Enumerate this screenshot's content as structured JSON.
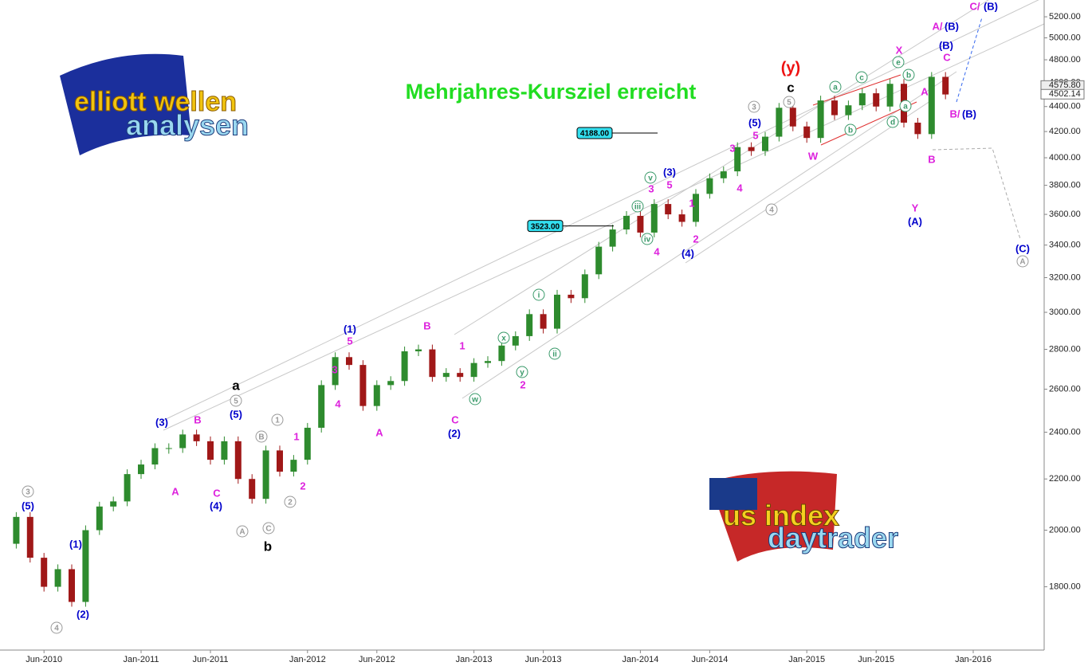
{
  "chart_data": {
    "type": "candlestick",
    "title": "Mehrjahres-Kursziel erreicht",
    "x": [
      "Mar-2010",
      "Apr-2010",
      "May-2010",
      "Jun-2010",
      "Jul-2010",
      "Aug-2010",
      "Sep-2010",
      "Oct-2010",
      "Nov-2010",
      "Dec-2010",
      "Jan-2011",
      "Feb-2011",
      "Mar-2011",
      "Apr-2011",
      "May-2011",
      "Jun-2011",
      "Jul-2011",
      "Aug-2011",
      "Sep-2011",
      "Oct-2011",
      "Nov-2011",
      "Dec-2011",
      "Jan-2012",
      "Feb-2012",
      "Mar-2012",
      "Apr-2012",
      "May-2012",
      "Jun-2012",
      "Jul-2012",
      "Aug-2012",
      "Sep-2012",
      "Oct-2012",
      "Nov-2012",
      "Dec-2012",
      "Jan-2013",
      "Feb-2013",
      "Mar-2013",
      "Apr-2013",
      "May-2013",
      "Jun-2013",
      "Jul-2013",
      "Aug-2013",
      "Sep-2013",
      "Oct-2013",
      "Nov-2013",
      "Dec-2013",
      "Jan-2014",
      "Feb-2014",
      "Mar-2014",
      "Apr-2014",
      "May-2014",
      "Jun-2014",
      "Jul-2014",
      "Aug-2014",
      "Sep-2014",
      "Oct-2014",
      "Nov-2014",
      "Dec-2014",
      "Jan-2015",
      "Feb-2015",
      "Mar-2015",
      "Apr-2015",
      "May-2015",
      "Jun-2015",
      "Jul-2015",
      "Aug-2015",
      "Sep-2015",
      "Oct-2015",
      "Nov-2015",
      "Dec-2015",
      "Jan-2016",
      "Feb-2016",
      "Mar-2016",
      "Apr-2016"
    ],
    "values": [
      1950,
      2050,
      1900,
      1800,
      1860,
      1750,
      2000,
      2090,
      2110,
      2220,
      2260,
      2330,
      2330,
      2390,
      2360,
      2280,
      2360,
      2200,
      2120,
      2320,
      2230,
      2280,
      2420,
      2620,
      2760,
      2720,
      2520,
      2620,
      2640,
      2790,
      2800,
      2660,
      2680,
      2660,
      2730,
      2740,
      2820,
      2870,
      2990,
      2910,
      3100,
      3080,
      3220,
      3390,
      3500,
      3590,
      3480,
      3670,
      3600,
      3550,
      3740,
      3850,
      3900,
      4080,
      4050,
      4160,
      4390,
      4240,
      4150,
      4450,
      4330,
      4410,
      4510,
      4400,
      4590,
      4270,
      4180,
      4650,
      4500,
      null,
      null,
      null,
      null,
      null
    ],
    "up_color": "#2e8b2e",
    "down_color": "#a01818",
    "log_scale": true,
    "ylim": [
      1600,
      5365
    ],
    "yticks": [
      {
        "value": 1800,
        "label": "1800.00"
      },
      {
        "value": 2000,
        "label": "2000.00"
      },
      {
        "value": 2200,
        "label": "2200.00"
      },
      {
        "value": 2400,
        "label": "2400.00"
      },
      {
        "value": 2600,
        "label": "2600.00"
      },
      {
        "value": 2800,
        "label": "2800.00"
      },
      {
        "value": 3000,
        "label": "3000.00"
      },
      {
        "value": 3200,
        "label": "3200.00"
      },
      {
        "value": 3400,
        "label": "3400.00"
      },
      {
        "value": 3600,
        "label": "3600.00"
      },
      {
        "value": 3800,
        "label": "3800.00"
      },
      {
        "value": 4000,
        "label": "4000.00"
      },
      {
        "value": 4200,
        "label": "4200.00"
      },
      {
        "value": 4400,
        "label": "4400.00"
      },
      {
        "value": 4600,
        "label": "4600.00"
      },
      {
        "value": 4800,
        "label": "4800.00"
      },
      {
        "value": 5000,
        "label": "5000.00"
      },
      {
        "value": 5200,
        "label": "5200.00"
      }
    ],
    "xticks": [
      "Jun-2010",
      "Jan-2011",
      "Jun-2011",
      "Jan-2012",
      "Jun-2012",
      "Jan-2013",
      "Jun-2013",
      "Jan-2014",
      "Jun-2014",
      "Jan-2015",
      "Jun-2015",
      "Jan-2016"
    ],
    "price_levels": [
      {
        "value": 4188,
        "label": "4188.00"
      },
      {
        "value": 3523,
        "label": "3523.00"
      }
    ],
    "last_prices": [
      {
        "value": 4575.8,
        "label": "4575.80"
      },
      {
        "value": 4502.14,
        "label": "4502.14"
      }
    ],
    "annotations": [
      {
        "text": "a",
        "color": "#000000"
      },
      {
        "text": "b",
        "color": "#000000"
      },
      {
        "text": "c",
        "color": "#000000"
      },
      {
        "text": "(y)",
        "color": "#ee1111"
      },
      {
        "text": "(5)",
        "color": "#0000cc"
      },
      {
        "text": "(1)",
        "color": "#0000cc"
      },
      {
        "text": "(2)",
        "color": "#0000cc"
      },
      {
        "text": "(3)",
        "color": "#0000cc"
      },
      {
        "text": "(4)",
        "color": "#0000cc"
      },
      {
        "text": "(5)",
        "color": "#0000cc"
      },
      {
        "text": "(1)",
        "color": "#0000cc"
      },
      {
        "text": "(2)",
        "color": "#0000cc"
      },
      {
        "text": "(3)",
        "color": "#0000cc"
      },
      {
        "text": "(4)",
        "color": "#0000cc"
      },
      {
        "text": "(5)",
        "color": "#0000cc"
      },
      {
        "text": "(A)",
        "color": "#0000cc"
      },
      {
        "text": "(B)",
        "color": "#0000cc"
      },
      {
        "text": "(C)",
        "color": "#0000cc"
      },
      {
        "text": "A/",
        "color": "#dd22dd"
      },
      {
        "text": "(B)",
        "color": "#0000cc"
      },
      {
        "text": "C/",
        "color": "#dd22dd"
      },
      {
        "text": "(B)",
        "color": "#0000cc"
      },
      {
        "text": "B/",
        "color": "#dd22dd"
      },
      {
        "text": "(B)",
        "color": "#0000cc"
      },
      {
        "text": "A",
        "color": "#dd22dd"
      },
      {
        "text": "B",
        "color": "#dd22dd"
      },
      {
        "text": "C",
        "color": "#dd22dd"
      },
      {
        "text": "1",
        "color": "#dd22dd"
      },
      {
        "text": "2",
        "color": "#dd22dd"
      },
      {
        "text": "3",
        "color": "#dd22dd"
      },
      {
        "text": "4",
        "color": "#dd22dd"
      },
      {
        "text": "5",
        "color": "#dd22dd"
      },
      {
        "text": "A",
        "color": "#dd22dd"
      },
      {
        "text": "B",
        "color": "#dd22dd"
      },
      {
        "text": "1",
        "color": "#dd22dd"
      },
      {
        "text": "C",
        "color": "#dd22dd"
      },
      {
        "text": "2",
        "color": "#dd22dd"
      },
      {
        "text": "1",
        "color": "#dd22dd"
      },
      {
        "text": "2",
        "color": "#dd22dd"
      },
      {
        "text": "3",
        "color": "#dd22dd"
      },
      {
        "text": "4",
        "color": "#dd22dd"
      },
      {
        "text": "5",
        "color": "#dd22dd"
      },
      {
        "text": "3",
        "color": "#dd22dd"
      },
      {
        "text": "4",
        "color": "#dd22dd"
      },
      {
        "text": "5",
        "color": "#dd22dd"
      },
      {
        "text": "W",
        "color": "#dd22dd"
      },
      {
        "text": "X",
        "color": "#dd22dd"
      },
      {
        "text": "A",
        "color": "#dd22dd"
      },
      {
        "text": "Y",
        "color": "#dd22dd"
      },
      {
        "text": "B",
        "color": "#dd22dd"
      },
      {
        "text": "C",
        "color": "#dd22dd"
      },
      {
        "text": "3",
        "color": "#999999",
        "circled": true
      },
      {
        "text": "4",
        "color": "#999999",
        "circled": true
      },
      {
        "text": "5",
        "color": "#999999",
        "circled": true
      },
      {
        "text": "1",
        "color": "#999999",
        "circled": true
      },
      {
        "text": "B",
        "color": "#999999",
        "circled": true
      },
      {
        "text": "A",
        "color": "#999999",
        "circled": true
      },
      {
        "text": "C",
        "color": "#999999",
        "circled": true
      },
      {
        "text": "2",
        "color": "#999999",
        "circled": true
      },
      {
        "text": "3",
        "color": "#999999",
        "circled": true
      },
      {
        "text": "5",
        "color": "#999999",
        "circled": true
      },
      {
        "text": "4",
        "color": "#999999",
        "circled": true
      },
      {
        "text": "A",
        "color": "#999999",
        "circled": true
      },
      {
        "text": "i",
        "color": "#3a9a6a",
        "circled": true
      },
      {
        "text": "ii",
        "color": "#3a9a6a",
        "circled": true
      },
      {
        "text": "iii",
        "color": "#3a9a6a",
        "circled": true
      },
      {
        "text": "iv",
        "color": "#3a9a6a",
        "circled": true
      },
      {
        "text": "v",
        "color": "#3a9a6a",
        "circled": true
      },
      {
        "text": "w",
        "color": "#3a9a6a",
        "circled": true
      },
      {
        "text": "x",
        "color": "#3a9a6a",
        "circled": true
      },
      {
        "text": "y",
        "color": "#3a9a6a",
        "circled": true
      },
      {
        "text": "a",
        "color": "#3a9a6a",
        "circled": true
      },
      {
        "text": "b",
        "color": "#3a9a6a",
        "circled": true
      },
      {
        "text": "c",
        "color": "#3a9a6a",
        "circled": true
      },
      {
        "text": "d",
        "color": "#3a9a6a",
        "circled": true
      },
      {
        "text": "e",
        "color": "#3a9a6a",
        "circled": true
      },
      {
        "text": "b",
        "color": "#3a9a6a",
        "circled": true
      },
      {
        "text": "a",
        "color": "#3a9a6a",
        "circled": true
      }
    ]
  },
  "logos": {
    "elliott": [
      "elliott wellen",
      "analysen"
    ],
    "usindex": [
      "us index",
      "daytrader"
    ]
  }
}
